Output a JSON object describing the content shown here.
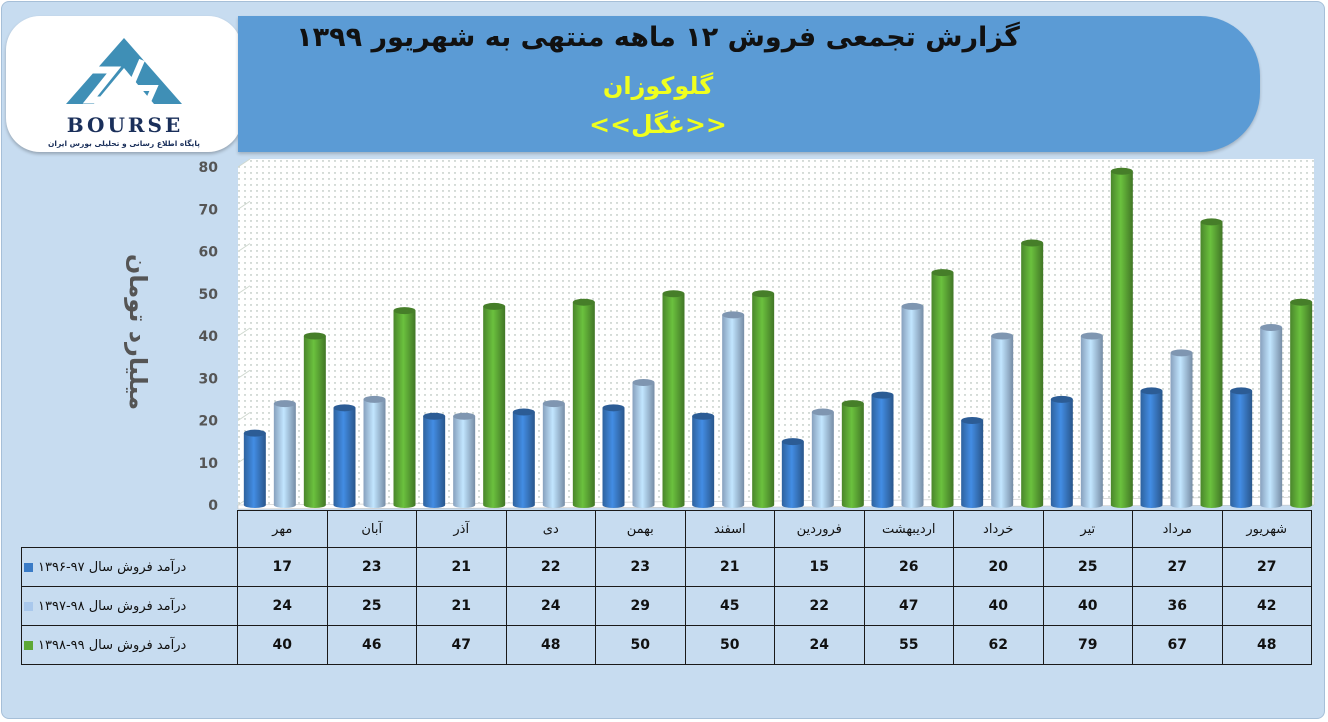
{
  "header": {
    "title": "گزارش تجمعی فروش ۱۲ ماهه منتهی به شهریور ۱۳۹۹",
    "company": "گلوکوزان",
    "symbol": "<<غگل>>"
  },
  "logo": {
    "text": "BOURSE",
    "tagline": "پایگاه اطلاع رسانی و تحلیلی بورس ایران"
  },
  "colors": {
    "series_1396_97": "#3a7bc6",
    "series_1397_98": "#a9c8ec",
    "series_1398_99": "#5da836",
    "title_banner": "#5b9bd5",
    "subtitle": "#f0ff1e"
  },
  "chart_data": {
    "type": "bar",
    "style": "3d-cylinder",
    "ylabel": "میلیارد تومان",
    "ylim": [
      0,
      80
    ],
    "yticks": [
      0,
      10,
      20,
      30,
      40,
      50,
      60,
      70,
      80
    ],
    "grid": true,
    "categories": [
      "مهر",
      "آبان",
      "آذر",
      "دی",
      "بهمن",
      "اسفند",
      "فروردین",
      "اردیبهشت",
      "خرداد",
      "تیر",
      "مرداد",
      "شهریور"
    ],
    "series": [
      {
        "name": "درآمد فروش سال ۹۷-۱۳۹۶",
        "color": "#3a7bc6",
        "values": [
          17,
          23,
          21,
          22,
          23,
          21,
          15,
          26,
          20,
          25,
          27,
          27
        ]
      },
      {
        "name": "درآمد فروش سال ۹۸-۱۳۹۷",
        "color": "#a9c8ec",
        "values": [
          24,
          25,
          21,
          24,
          29,
          45,
          22,
          47,
          40,
          40,
          36,
          42
        ]
      },
      {
        "name": "درآمد فروش سال ۹۹-۱۳۹۸",
        "color": "#5da836",
        "values": [
          40,
          46,
          47,
          48,
          50,
          50,
          24,
          55,
          62,
          79,
          67,
          48
        ]
      }
    ],
    "legend": "data-table"
  }
}
